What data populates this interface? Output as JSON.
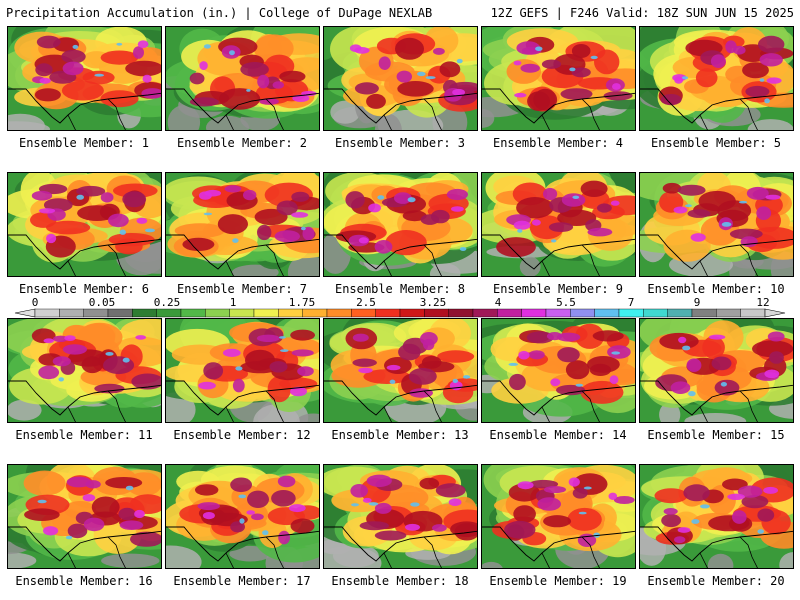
{
  "header": {
    "title_left": "Precipitation Accumulation (in.) | College of DuPage NEXLAB",
    "title_right": "12Z GEFS | F246 Valid: 18Z SUN JUN 15 2025"
  },
  "members": [
    {
      "label": "Ensemble Member: 1"
    },
    {
      "label": "Ensemble Member: 2"
    },
    {
      "label": "Ensemble Member: 3"
    },
    {
      "label": "Ensemble Member: 4"
    },
    {
      "label": "Ensemble Member: 5"
    },
    {
      "label": "Ensemble Member: 6"
    },
    {
      "label": "Ensemble Member: 7"
    },
    {
      "label": "Ensemble Member: 8"
    },
    {
      "label": "Ensemble Member: 9"
    },
    {
      "label": "Ensemble Member: 10"
    },
    {
      "label": "Ensemble Member: 11"
    },
    {
      "label": "Ensemble Member: 12"
    },
    {
      "label": "Ensemble Member: 13"
    },
    {
      "label": "Ensemble Member: 14"
    },
    {
      "label": "Ensemble Member: 15"
    },
    {
      "label": "Ensemble Member: 16"
    },
    {
      "label": "Ensemble Member: 17"
    },
    {
      "label": "Ensemble Member: 18"
    },
    {
      "label": "Ensemble Member: 19"
    },
    {
      "label": "Ensemble Member: 20"
    }
  ],
  "colorbar": {
    "tick_labels": [
      "0",
      "0.05",
      "0.25",
      "1",
      "1.75",
      "2.5",
      "3.25",
      "4",
      "5.5",
      "7",
      "9",
      "12"
    ],
    "colors": [
      "#d0d0d0",
      "#b0b0b0",
      "#909090",
      "#707070",
      "#2e7d32",
      "#3a9a3a",
      "#52b848",
      "#8cd050",
      "#c8e650",
      "#f0f050",
      "#ffd040",
      "#ffb030",
      "#ff8c28",
      "#ff6020",
      "#f03020",
      "#d01818",
      "#b01020",
      "#901030",
      "#a01858",
      "#c020a0",
      "#e030e0",
      "#c860f0",
      "#9090f0",
      "#60c0f0",
      "#40f0f0",
      "#40d8d0",
      "#50b0b0",
      "#808080",
      "#a0a0a0",
      "#c8c8c8"
    ]
  }
}
